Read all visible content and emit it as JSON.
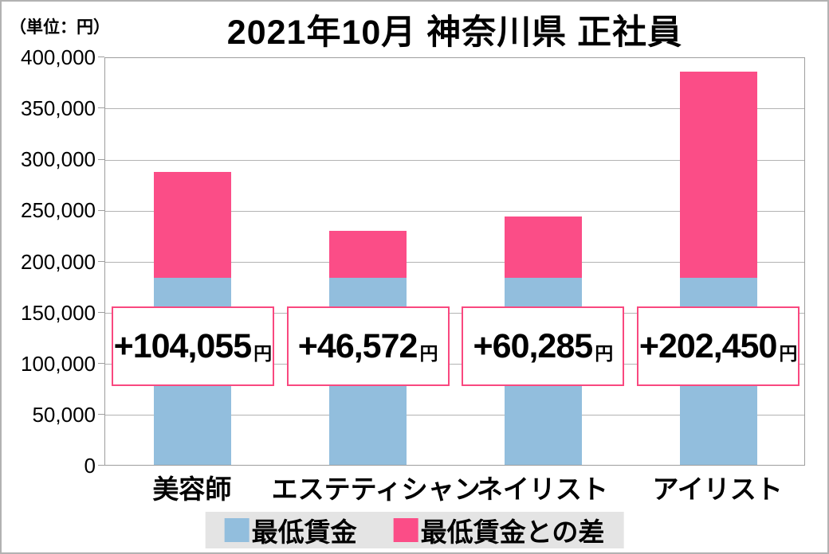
{
  "title": "2021年10月 神奈川県 正社員",
  "unit_label": "（単位：円）",
  "chart_data": {
    "type": "bar",
    "stacked": true,
    "title": "2021年10月 神奈川県 正社員",
    "ylabel": "（単位：円）",
    "xlabel": "",
    "grid": true,
    "legend_position": "bottom",
    "ylim": [
      0,
      400000
    ],
    "y_ticks": [
      "400,000",
      "350,000",
      "300,000",
      "250,000",
      "200,000",
      "150,000",
      "100,000",
      "50,000",
      "0"
    ],
    "y_tick_values": [
      400000,
      350000,
      300000,
      250000,
      200000,
      150000,
      100000,
      50000,
      0
    ],
    "categories": [
      "美容師",
      "エステティシャン",
      "ネイリスト",
      "アイリスト"
    ],
    "series": [
      {
        "name": "最低賃金",
        "color": "#92BEDD",
        "values": [
          183040,
          183040,
          183040,
          183040
        ]
      },
      {
        "name": "最低賃金との差",
        "color": "#FB4D87",
        "values": [
          104055,
          46572,
          60285,
          202450
        ]
      }
    ],
    "totals": [
      287095,
      229612,
      243325,
      385490
    ],
    "bar_labels": [
      {
        "value": "+104,055",
        "suffix": "円"
      },
      {
        "value": "+46,572",
        "suffix": "円"
      },
      {
        "value": "+60,285",
        "suffix": "円"
      },
      {
        "value": "+202,450",
        "suffix": "円"
      }
    ]
  },
  "legend": {
    "items": [
      {
        "label": "最低賃金",
        "color": "#92BEDD"
      },
      {
        "label": "最低賃金との差",
        "color": "#FB4D87"
      }
    ]
  },
  "colors": {
    "min_wage_blue": "#92BEDD",
    "diff_pink": "#FB4D87",
    "label_box_border": "#F9487F",
    "legend_background": "#E4E4E4",
    "gridline": "#B3B3B3",
    "plot_border": "#9E9E9E",
    "canvas_border": "#B2B2B2",
    "text": "#000000"
  }
}
